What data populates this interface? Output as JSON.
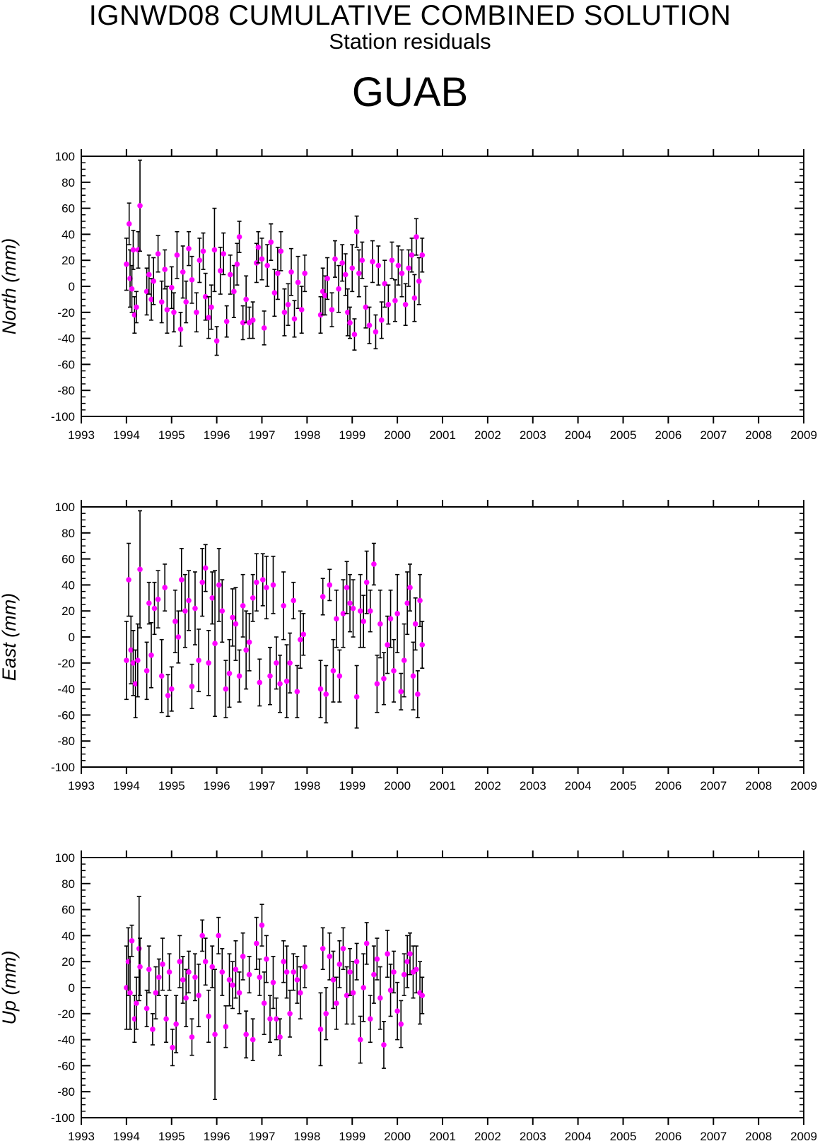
{
  "header": {
    "title": "IGNWD08 CUMULATIVE COMBINED SOLUTION",
    "subtitle": "Station residuals",
    "station": "GUAB"
  },
  "colors": {
    "point": "#ff00ff",
    "errorbar": "#000000",
    "axis": "#000000"
  },
  "chart_data": [
    {
      "type": "scatter",
      "ylabel": "North (mm)",
      "xlim": [
        1993,
        2009
      ],
      "ylim": [
        -100,
        100
      ],
      "xticks": [
        1993,
        1994,
        1995,
        1996,
        1997,
        1998,
        1999,
        2000,
        2001,
        2002,
        2003,
        2004,
        2005,
        2006,
        2007,
        2008,
        2009
      ],
      "yticks": [
        -100,
        -80,
        -60,
        -40,
        -20,
        0,
        20,
        40,
        60,
        80,
        100
      ],
      "grid": false,
      "error_bars": true,
      "x": [
        1994.0,
        1994.06,
        1994.08,
        1994.12,
        1994.15,
        1994.18,
        1994.22,
        1994.26,
        1994.3,
        1994.45,
        1994.5,
        1994.55,
        1994.6,
        1994.7,
        1994.78,
        1994.85,
        1994.9,
        1995.0,
        1995.05,
        1995.12,
        1995.2,
        1995.25,
        1995.32,
        1995.38,
        1995.45,
        1995.55,
        1995.62,
        1995.7,
        1995.75,
        1995.82,
        1995.88,
        1995.95,
        1996.0,
        1996.08,
        1996.15,
        1996.22,
        1996.3,
        1996.38,
        1996.45,
        1996.5,
        1996.58,
        1996.65,
        1996.72,
        1996.8,
        1996.88,
        1996.92,
        1997.0,
        1997.05,
        1997.12,
        1997.2,
        1997.28,
        1997.35,
        1997.42,
        1997.5,
        1997.58,
        1997.65,
        1997.72,
        1997.8,
        1997.88,
        1997.95,
        1998.3,
        1998.35,
        1998.4,
        1998.45,
        1998.55,
        1998.62,
        1998.7,
        1998.78,
        1998.85,
        1998.9,
        1998.95,
        1999.0,
        1999.05,
        1999.1,
        1999.15,
        1999.22,
        1999.3,
        1999.38,
        1999.45,
        1999.52,
        1999.58,
        1999.65,
        1999.72,
        1999.8,
        1999.88,
        1999.95,
        2000.02,
        2000.1,
        2000.18,
        2000.25,
        2000.32,
        2000.38,
        2000.42,
        2000.48,
        2000.55
      ],
      "y": [
        17,
        48,
        6,
        -2,
        28,
        -22,
        -16,
        28,
        62,
        -4,
        9,
        -10,
        4,
        25,
        -12,
        13,
        -18,
        -1,
        -20,
        24,
        -33,
        11,
        -12,
        29,
        5,
        -20,
        20,
        27,
        -8,
        -24,
        -16,
        28,
        -42,
        12,
        25,
        -27,
        9,
        -4,
        17,
        38,
        -28,
        -10,
        -28,
        -26,
        18,
        30,
        21,
        -32,
        16,
        34,
        -5,
        10,
        27,
        -20,
        -14,
        11,
        -25,
        3,
        -18,
        10,
        -22,
        -4,
        -7,
        6,
        -18,
        21,
        -2,
        18,
        9,
        -20,
        -28,
        14,
        -37,
        42,
        10,
        20,
        -16,
        -30,
        19,
        -35,
        16,
        -26,
        2,
        -14,
        20,
        -11,
        16,
        10,
        -14,
        14,
        24,
        -9,
        38,
        4,
        24
      ],
      "err": [
        20,
        16,
        22,
        18,
        15,
        14,
        12,
        14,
        35,
        18,
        15,
        16,
        18,
        14,
        16,
        15,
        18,
        16,
        15,
        18,
        13,
        20,
        16,
        13,
        18,
        15,
        17,
        14,
        18,
        16,
        17,
        32,
        11,
        18,
        16,
        12,
        15,
        20,
        16,
        12,
        13,
        18,
        12,
        14,
        15,
        12,
        16,
        13,
        16,
        14,
        18,
        20,
        15,
        18,
        16,
        18,
        14,
        20,
        18,
        14,
        14,
        18,
        15,
        16,
        13,
        14,
        18,
        14,
        16,
        18,
        12,
        18,
        12,
        12,
        18,
        14,
        16,
        14,
        16,
        13,
        15,
        14,
        18,
        15,
        14,
        16,
        15,
        18,
        16,
        14,
        13,
        18,
        14,
        18,
        13
      ]
    },
    {
      "type": "scatter",
      "ylabel": "East (mm)",
      "xlim": [
        1993,
        2009
      ],
      "ylim": [
        -100,
        100
      ],
      "xticks": [
        1993,
        1994,
        1995,
        1996,
        1997,
        1998,
        1999,
        2000,
        2001,
        2002,
        2003,
        2004,
        2005,
        2006,
        2007,
        2008,
        2009
      ],
      "yticks": [
        -100,
        -80,
        -60,
        -40,
        -20,
        0,
        20,
        40,
        60,
        80,
        100
      ],
      "grid": false,
      "error_bars": true,
      "x": [
        1994.0,
        1994.05,
        1994.1,
        1994.15,
        1994.2,
        1994.25,
        1994.3,
        1994.45,
        1994.5,
        1994.55,
        1994.62,
        1994.7,
        1994.78,
        1994.85,
        1994.92,
        1995.0,
        1995.08,
        1995.15,
        1995.22,
        1995.3,
        1995.38,
        1995.45,
        1995.52,
        1995.6,
        1995.68,
        1995.75,
        1995.82,
        1995.9,
        1995.96,
        1996.05,
        1996.12,
        1996.2,
        1996.28,
        1996.35,
        1996.42,
        1996.5,
        1996.58,
        1996.65,
        1996.72,
        1996.8,
        1996.88,
        1996.95,
        1997.02,
        1997.1,
        1997.18,
        1997.25,
        1997.32,
        1997.4,
        1997.48,
        1997.55,
        1997.62,
        1997.7,
        1997.78,
        1997.85,
        1997.92,
        1998.3,
        1998.35,
        1998.42,
        1998.5,
        1998.58,
        1998.65,
        1998.72,
        1998.8,
        1998.88,
        1998.95,
        1999.02,
        1999.1,
        1999.18,
        1999.25,
        1999.32,
        1999.4,
        1999.48,
        1999.55,
        1999.62,
        1999.7,
        1999.78,
        1999.85,
        1999.92,
        2000.0,
        2000.08,
        2000.15,
        2000.22,
        2000.28,
        2000.35,
        2000.4,
        2000.45,
        2000.5,
        2000.55
      ],
      "y": [
        -18,
        44,
        -10,
        -20,
        -36,
        -18,
        52,
        -26,
        26,
        -14,
        22,
        29,
        -30,
        38,
        -45,
        -40,
        12,
        0,
        44,
        20,
        28,
        -38,
        22,
        -18,
        42,
        53,
        -20,
        30,
        -5,
        40,
        20,
        -40,
        -28,
        15,
        10,
        -30,
        24,
        -10,
        -4,
        30,
        42,
        -35,
        44,
        38,
        -30,
        40,
        -20,
        -36,
        24,
        -34,
        -20,
        28,
        -42,
        -2,
        2,
        -40,
        31,
        -44,
        40,
        -26,
        14,
        -30,
        18,
        38,
        26,
        22,
        -46,
        20,
        12,
        42,
        20,
        56,
        -36,
        10,
        -32,
        -6,
        14,
        -26,
        18,
        -42,
        -18,
        26,
        38,
        -30,
        10,
        -44,
        28,
        -6
      ],
      "err": [
        30,
        28,
        26,
        25,
        26,
        28,
        45,
        22,
        16,
        25,
        20,
        22,
        28,
        18,
        16,
        17,
        24,
        20,
        24,
        28,
        23,
        17,
        28,
        24,
        26,
        18,
        25,
        20,
        56,
        28,
        24,
        22,
        26,
        22,
        28,
        20,
        24,
        30,
        22,
        18,
        22,
        18,
        20,
        24,
        22,
        22,
        20,
        22,
        26,
        28,
        23,
        14,
        20,
        22,
        16,
        22,
        14,
        22,
        12,
        24,
        22,
        20,
        26,
        20,
        22,
        22,
        24,
        28,
        20,
        24,
        16,
        16,
        22,
        26,
        20,
        22,
        22,
        24,
        30,
        14,
        28,
        24,
        18,
        26,
        20,
        18,
        20,
        18
      ]
    },
    {
      "type": "scatter",
      "ylabel": "Up (mm)",
      "xlim": [
        1993,
        2009
      ],
      "ylim": [
        -100,
        100
      ],
      "xticks": [
        1993,
        1994,
        1995,
        1996,
        1997,
        1998,
        1999,
        2000,
        2001,
        2002,
        2003,
        2004,
        2005,
        2006,
        2007,
        2008,
        2009
      ],
      "yticks": [
        -100,
        -80,
        -60,
        -40,
        -20,
        0,
        20,
        40,
        60,
        80,
        100
      ],
      "grid": false,
      "error_bars": true,
      "x": [
        1994.0,
        1994.04,
        1994.08,
        1994.12,
        1994.18,
        1994.22,
        1994.28,
        1994.3,
        1994.45,
        1994.5,
        1994.58,
        1994.65,
        1994.72,
        1994.8,
        1994.88,
        1994.95,
        1995.02,
        1995.1,
        1995.18,
        1995.25,
        1995.32,
        1995.38,
        1995.45,
        1995.52,
        1995.6,
        1995.68,
        1995.75,
        1995.82,
        1995.9,
        1995.96,
        1996.04,
        1996.12,
        1996.2,
        1996.28,
        1996.35,
        1996.42,
        1996.5,
        1996.58,
        1996.65,
        1996.72,
        1996.8,
        1996.88,
        1996.95,
        1997.0,
        1997.05,
        1997.1,
        1997.18,
        1997.25,
        1997.32,
        1997.4,
        1997.48,
        1997.55,
        1997.62,
        1997.7,
        1997.78,
        1997.85,
        1997.95,
        1998.3,
        1998.35,
        1998.42,
        1998.5,
        1998.58,
        1998.65,
        1998.72,
        1998.8,
        1998.88,
        1998.95,
        1999.02,
        1999.1,
        1999.18,
        1999.25,
        1999.32,
        1999.4,
        1999.48,
        1999.55,
        1999.62,
        1999.7,
        1999.78,
        1999.85,
        1999.92,
        2000.0,
        2000.08,
        2000.15,
        2000.22,
        2000.28,
        2000.35,
        2000.42,
        2000.5,
        2000.55
      ],
      "y": [
        0,
        20,
        -4,
        36,
        -24,
        -12,
        30,
        16,
        -16,
        14,
        -32,
        -4,
        8,
        18,
        -24,
        12,
        -46,
        -28,
        20,
        6,
        -8,
        12,
        -38,
        8,
        -6,
        40,
        20,
        -22,
        16,
        -36,
        40,
        12,
        -30,
        6,
        2,
        14,
        -4,
        24,
        -36,
        10,
        -40,
        34,
        8,
        48,
        -12,
        22,
        -24,
        4,
        -24,
        -38,
        20,
        12,
        -20,
        12,
        6,
        -4,
        16,
        -32,
        30,
        -20,
        24,
        6,
        -12,
        18,
        30,
        -6,
        12,
        -4,
        20,
        -40,
        0,
        34,
        -24,
        10,
        22,
        -8,
        -44,
        26,
        -2,
        12,
        -18,
        -28,
        10,
        20,
        26,
        12,
        14,
        -4,
        -6
      ],
      "err": [
        32,
        26,
        28,
        12,
        18,
        20,
        40,
        22,
        14,
        18,
        12,
        20,
        14,
        20,
        18,
        14,
        14,
        22,
        20,
        18,
        22,
        16,
        14,
        18,
        24,
        12,
        18,
        20,
        16,
        50,
        14,
        18,
        16,
        20,
        18,
        22,
        16,
        18,
        18,
        14,
        16,
        20,
        14,
        16,
        24,
        18,
        18,
        20,
        16,
        14,
        16,
        20,
        18,
        14,
        18,
        20,
        16,
        28,
        16,
        20,
        18,
        22,
        20,
        18,
        16,
        22,
        18,
        24,
        14,
        18,
        26,
        16,
        18,
        22,
        16,
        24,
        18,
        18,
        20,
        16,
        22,
        18,
        16,
        20,
        16,
        20,
        18,
        24,
        14
      ]
    }
  ]
}
